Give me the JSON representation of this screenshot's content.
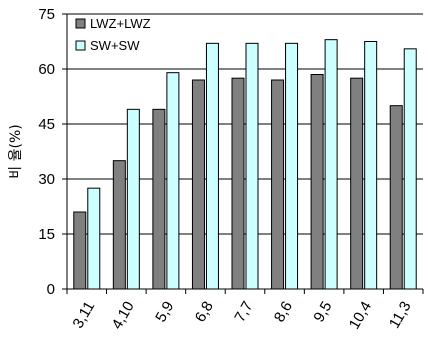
{
  "chart_data": {
    "type": "bar",
    "title": "",
    "xlabel": "",
    "ylabel": "비 율(%)",
    "ylim": [
      0,
      75
    ],
    "yticks": [
      0,
      15,
      30,
      45,
      60,
      75
    ],
    "grid": "horizontal",
    "legend_position": "top-left",
    "categories": [
      "3,11",
      "4,10",
      "5,9",
      "6,8",
      "7,7",
      "8,6",
      "9,5",
      "10,4",
      "11,3"
    ],
    "series": [
      {
        "name": "LWZ+LWZ",
        "color": "#808080",
        "values": [
          21,
          35,
          49,
          57,
          57.5,
          57,
          58.5,
          57.5,
          50
        ]
      },
      {
        "name": "SW+SW",
        "color": "#ccffff",
        "values": [
          27.5,
          49,
          59,
          67,
          67,
          67,
          68,
          67.5,
          65.5
        ]
      }
    ]
  }
}
